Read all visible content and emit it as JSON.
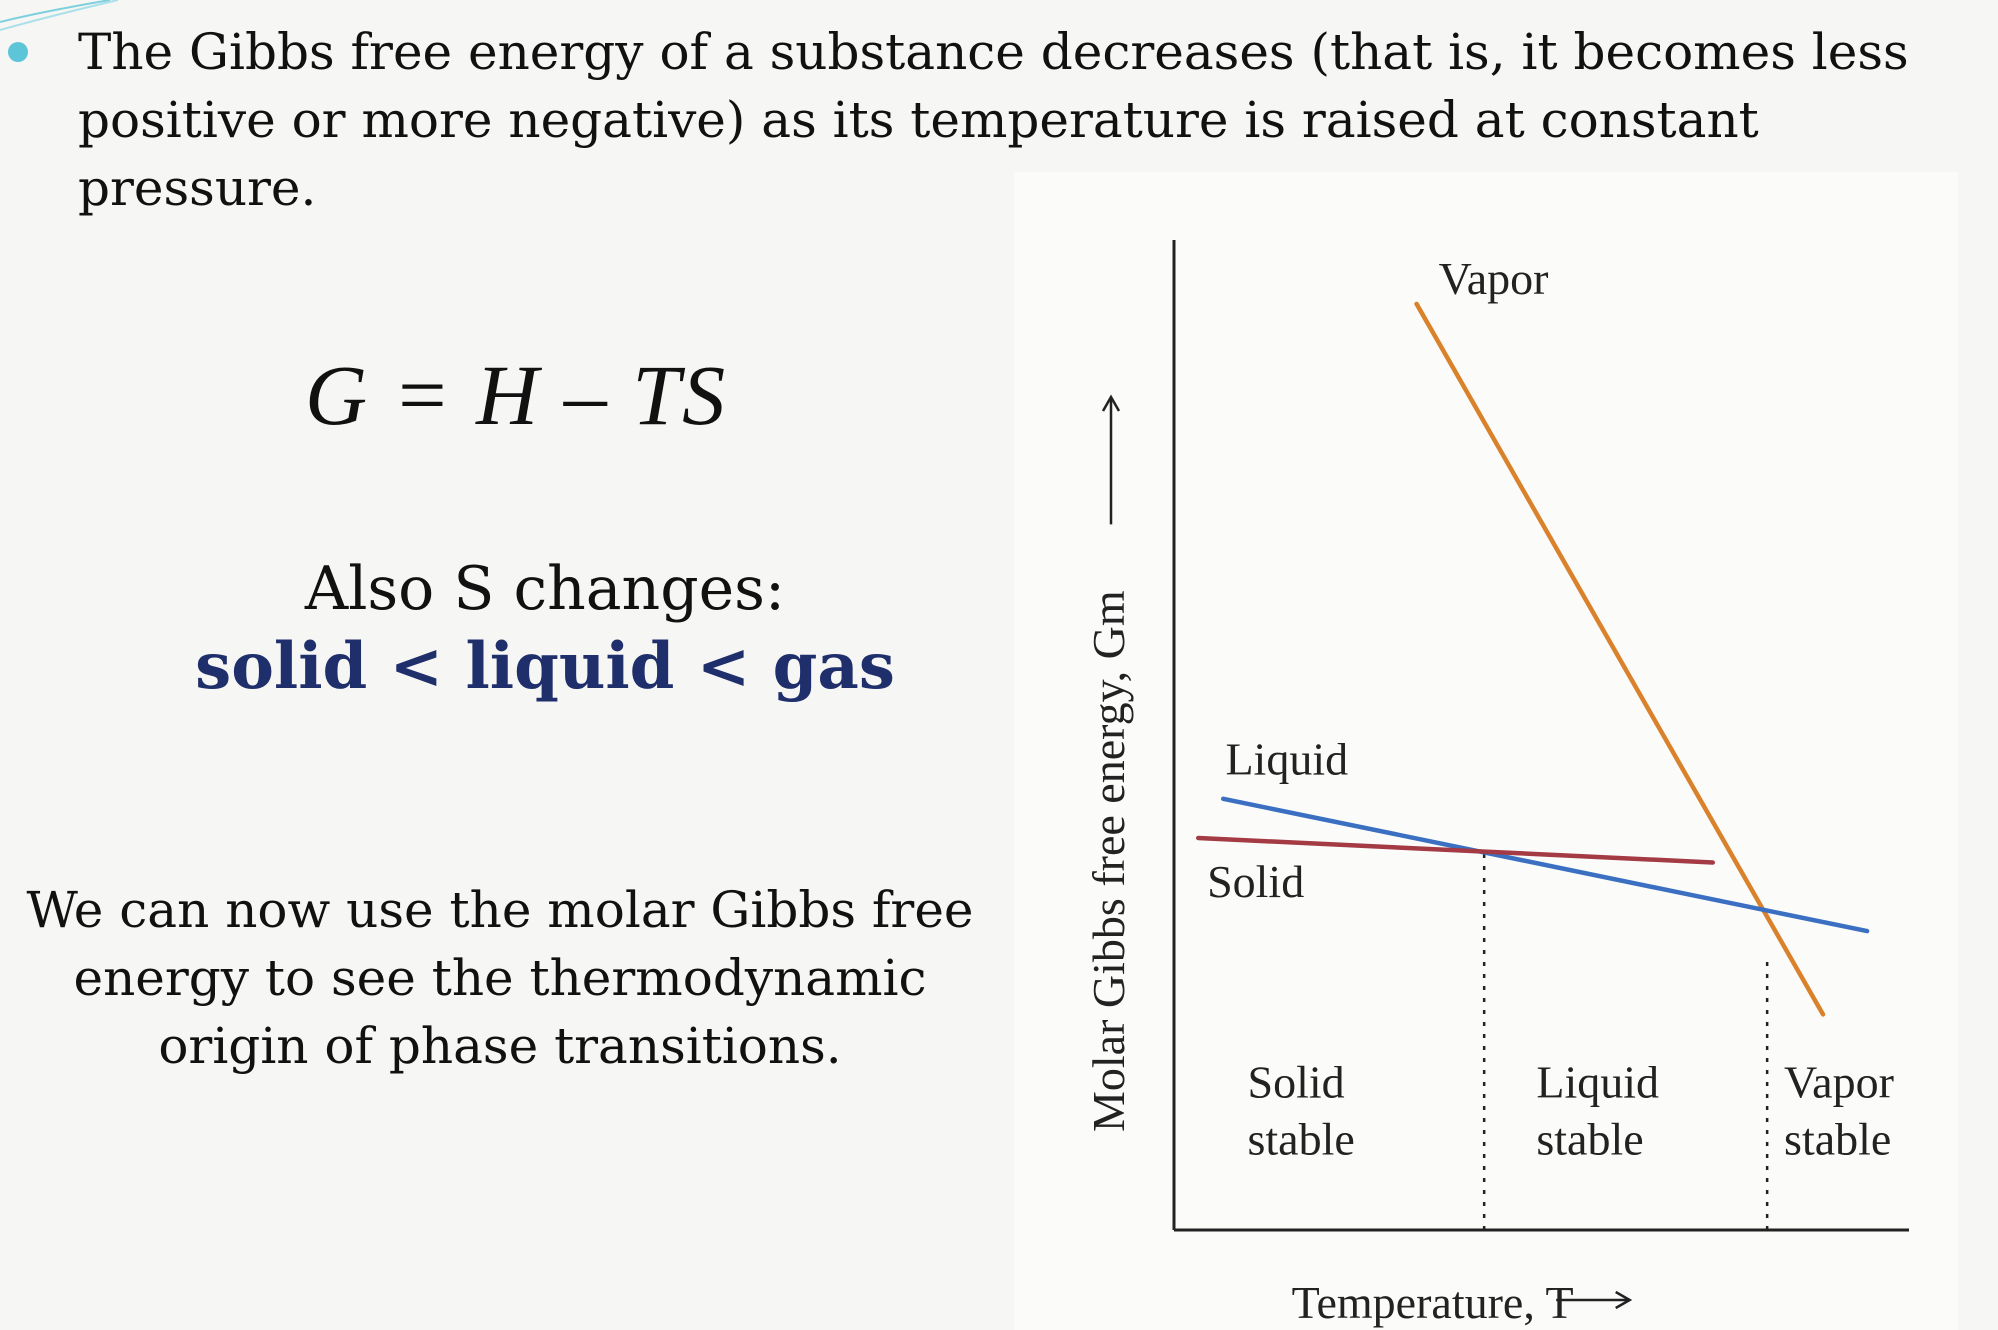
{
  "slide": {
    "bullet_text": "The Gibbs free energy of a substance decreases (that is, it becomes less positive or more negative) as its temperature is raised at constant pressure.",
    "equation": "G = H – TS",
    "entropy_title": "Also S changes:",
    "entropy_order": "solid < liquid < gas",
    "molar_text": "We can now use the molar Gibbs free energy to see the thermodynamic origin of phase transitions.",
    "accent_color": "#1f2f6b",
    "bullet_color": "#5cc6d8"
  },
  "chart_data": {
    "type": "line",
    "xlabel": "Temperature, T",
    "ylabel": "Molar Gibbs free energy, Gm",
    "series": [
      {
        "name": "Vapor",
        "color": "#d9822b",
        "points": [
          [
            0.33,
            0.945
          ],
          [
            0.883,
            0.22
          ]
        ]
      },
      {
        "name": "Liquid",
        "color": "#3a6fc1",
        "points": [
          [
            0.067,
            0.44
          ],
          [
            0.943,
            0.305
          ]
        ]
      },
      {
        "name": "Solid",
        "color": "#a33a44",
        "points": [
          [
            0.033,
            0.4
          ],
          [
            0.733,
            0.375
          ]
        ]
      }
    ],
    "transitions": [
      0.422,
      0.807
    ],
    "regions": [
      {
        "line1": "Solid",
        "line2": "stable"
      },
      {
        "line1": "Liquid",
        "line2": "stable"
      },
      {
        "line1": "Vapor",
        "line2": "stable"
      }
    ],
    "grid": false,
    "xlim": [
      0,
      1
    ],
    "ylim": [
      0,
      1
    ]
  }
}
